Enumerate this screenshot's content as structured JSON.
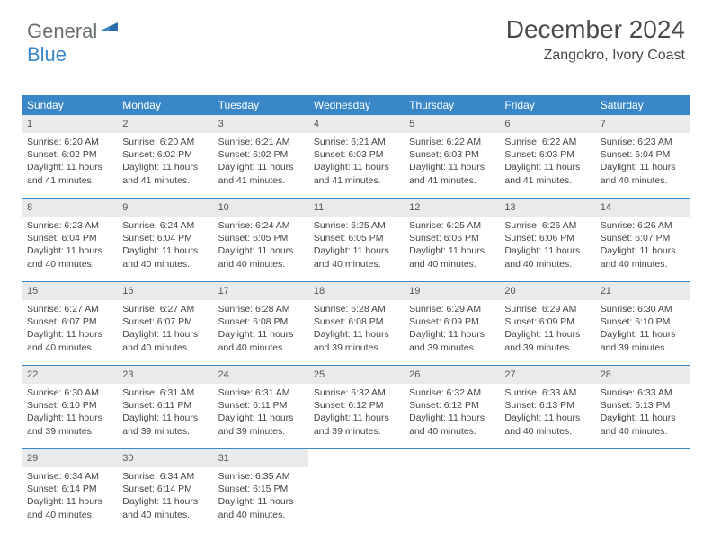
{
  "logo": {
    "part1": "General",
    "part2": "Blue"
  },
  "header": {
    "month_title": "December 2024",
    "location": "Zangokro, Ivory Coast"
  },
  "colors": {
    "header_bg": "#3a87c8",
    "header_text": "#ffffff",
    "daynum_bg": "#e9eaeb",
    "rule": "#3a87c8"
  },
  "fonts": {
    "month_title_pt": 28,
    "location_pt": 16,
    "dayheader_pt": 12,
    "daynum_pt": 11,
    "body_pt": 10.5
  },
  "day_headers": [
    "Sunday",
    "Monday",
    "Tuesday",
    "Wednesday",
    "Thursday",
    "Friday",
    "Saturday"
  ],
  "weeks": [
    [
      {
        "n": "1",
        "sr": "Sunrise: 6:20 AM",
        "ss": "Sunset: 6:02 PM",
        "d1": "Daylight: 11 hours",
        "d2": "and 41 minutes."
      },
      {
        "n": "2",
        "sr": "Sunrise: 6:20 AM",
        "ss": "Sunset: 6:02 PM",
        "d1": "Daylight: 11 hours",
        "d2": "and 41 minutes."
      },
      {
        "n": "3",
        "sr": "Sunrise: 6:21 AM",
        "ss": "Sunset: 6:02 PM",
        "d1": "Daylight: 11 hours",
        "d2": "and 41 minutes."
      },
      {
        "n": "4",
        "sr": "Sunrise: 6:21 AM",
        "ss": "Sunset: 6:03 PM",
        "d1": "Daylight: 11 hours",
        "d2": "and 41 minutes."
      },
      {
        "n": "5",
        "sr": "Sunrise: 6:22 AM",
        "ss": "Sunset: 6:03 PM",
        "d1": "Daylight: 11 hours",
        "d2": "and 41 minutes."
      },
      {
        "n": "6",
        "sr": "Sunrise: 6:22 AM",
        "ss": "Sunset: 6:03 PM",
        "d1": "Daylight: 11 hours",
        "d2": "and 41 minutes."
      },
      {
        "n": "7",
        "sr": "Sunrise: 6:23 AM",
        "ss": "Sunset: 6:04 PM",
        "d1": "Daylight: 11 hours",
        "d2": "and 40 minutes."
      }
    ],
    [
      {
        "n": "8",
        "sr": "Sunrise: 6:23 AM",
        "ss": "Sunset: 6:04 PM",
        "d1": "Daylight: 11 hours",
        "d2": "and 40 minutes."
      },
      {
        "n": "9",
        "sr": "Sunrise: 6:24 AM",
        "ss": "Sunset: 6:04 PM",
        "d1": "Daylight: 11 hours",
        "d2": "and 40 minutes."
      },
      {
        "n": "10",
        "sr": "Sunrise: 6:24 AM",
        "ss": "Sunset: 6:05 PM",
        "d1": "Daylight: 11 hours",
        "d2": "and 40 minutes."
      },
      {
        "n": "11",
        "sr": "Sunrise: 6:25 AM",
        "ss": "Sunset: 6:05 PM",
        "d1": "Daylight: 11 hours",
        "d2": "and 40 minutes."
      },
      {
        "n": "12",
        "sr": "Sunrise: 6:25 AM",
        "ss": "Sunset: 6:06 PM",
        "d1": "Daylight: 11 hours",
        "d2": "and 40 minutes."
      },
      {
        "n": "13",
        "sr": "Sunrise: 6:26 AM",
        "ss": "Sunset: 6:06 PM",
        "d1": "Daylight: 11 hours",
        "d2": "and 40 minutes."
      },
      {
        "n": "14",
        "sr": "Sunrise: 6:26 AM",
        "ss": "Sunset: 6:07 PM",
        "d1": "Daylight: 11 hours",
        "d2": "and 40 minutes."
      }
    ],
    [
      {
        "n": "15",
        "sr": "Sunrise: 6:27 AM",
        "ss": "Sunset: 6:07 PM",
        "d1": "Daylight: 11 hours",
        "d2": "and 40 minutes."
      },
      {
        "n": "16",
        "sr": "Sunrise: 6:27 AM",
        "ss": "Sunset: 6:07 PM",
        "d1": "Daylight: 11 hours",
        "d2": "and 40 minutes."
      },
      {
        "n": "17",
        "sr": "Sunrise: 6:28 AM",
        "ss": "Sunset: 6:08 PM",
        "d1": "Daylight: 11 hours",
        "d2": "and 40 minutes."
      },
      {
        "n": "18",
        "sr": "Sunrise: 6:28 AM",
        "ss": "Sunset: 6:08 PM",
        "d1": "Daylight: 11 hours",
        "d2": "and 39 minutes."
      },
      {
        "n": "19",
        "sr": "Sunrise: 6:29 AM",
        "ss": "Sunset: 6:09 PM",
        "d1": "Daylight: 11 hours",
        "d2": "and 39 minutes."
      },
      {
        "n": "20",
        "sr": "Sunrise: 6:29 AM",
        "ss": "Sunset: 6:09 PM",
        "d1": "Daylight: 11 hours",
        "d2": "and 39 minutes."
      },
      {
        "n": "21",
        "sr": "Sunrise: 6:30 AM",
        "ss": "Sunset: 6:10 PM",
        "d1": "Daylight: 11 hours",
        "d2": "and 39 minutes."
      }
    ],
    [
      {
        "n": "22",
        "sr": "Sunrise: 6:30 AM",
        "ss": "Sunset: 6:10 PM",
        "d1": "Daylight: 11 hours",
        "d2": "and 39 minutes."
      },
      {
        "n": "23",
        "sr": "Sunrise: 6:31 AM",
        "ss": "Sunset: 6:11 PM",
        "d1": "Daylight: 11 hours",
        "d2": "and 39 minutes."
      },
      {
        "n": "24",
        "sr": "Sunrise: 6:31 AM",
        "ss": "Sunset: 6:11 PM",
        "d1": "Daylight: 11 hours",
        "d2": "and 39 minutes."
      },
      {
        "n": "25",
        "sr": "Sunrise: 6:32 AM",
        "ss": "Sunset: 6:12 PM",
        "d1": "Daylight: 11 hours",
        "d2": "and 39 minutes."
      },
      {
        "n": "26",
        "sr": "Sunrise: 6:32 AM",
        "ss": "Sunset: 6:12 PM",
        "d1": "Daylight: 11 hours",
        "d2": "and 40 minutes."
      },
      {
        "n": "27",
        "sr": "Sunrise: 6:33 AM",
        "ss": "Sunset: 6:13 PM",
        "d1": "Daylight: 11 hours",
        "d2": "and 40 minutes."
      },
      {
        "n": "28",
        "sr": "Sunrise: 6:33 AM",
        "ss": "Sunset: 6:13 PM",
        "d1": "Daylight: 11 hours",
        "d2": "and 40 minutes."
      }
    ],
    [
      {
        "n": "29",
        "sr": "Sunrise: 6:34 AM",
        "ss": "Sunset: 6:14 PM",
        "d1": "Daylight: 11 hours",
        "d2": "and 40 minutes."
      },
      {
        "n": "30",
        "sr": "Sunrise: 6:34 AM",
        "ss": "Sunset: 6:14 PM",
        "d1": "Daylight: 11 hours",
        "d2": "and 40 minutes."
      },
      {
        "n": "31",
        "sr": "Sunrise: 6:35 AM",
        "ss": "Sunset: 6:15 PM",
        "d1": "Daylight: 11 hours",
        "d2": "and 40 minutes."
      },
      null,
      null,
      null,
      null
    ]
  ]
}
